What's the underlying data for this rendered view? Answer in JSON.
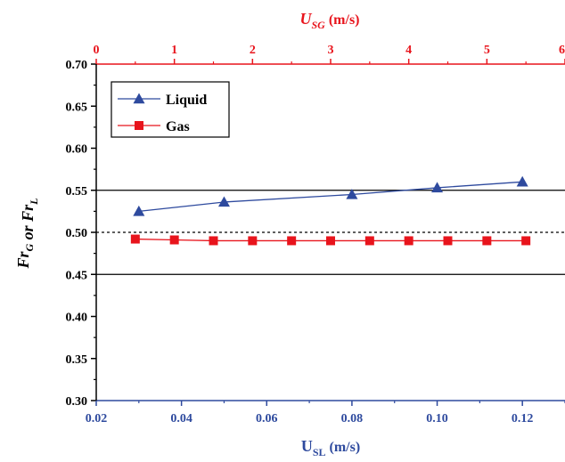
{
  "chart_data": {
    "type": "line",
    "title": "",
    "xlabel": {
      "main": "U",
      "sub": "SL",
      "unit": "(m/s)"
    },
    "x2label": {
      "main": "U",
      "sub": "SG",
      "unit": "(m/s)"
    },
    "ylabel": {
      "parts": [
        {
          "t": "Fr",
          "sub": "G"
        },
        {
          "t": " or "
        },
        {
          "t": "Fr",
          "sub": "L"
        }
      ]
    },
    "xlim": [
      0.02,
      0.13
    ],
    "x2lim": [
      0,
      6
    ],
    "ylim": [
      0.3,
      0.7
    ],
    "xticks": [
      "0.02",
      "0.04",
      "0.06",
      "0.08",
      "0.10",
      "0.12"
    ],
    "x2ticks": [
      "0",
      "1",
      "2",
      "3",
      "4",
      "5",
      "6"
    ],
    "yticks": [
      "0.30",
      "0.35",
      "0.40",
      "0.45",
      "0.50",
      "0.55",
      "0.60",
      "0.65",
      "0.70"
    ],
    "reference_lines": [
      {
        "y": 0.55,
        "style": "solid",
        "color": "#000000"
      },
      {
        "y": 0.5,
        "style": "dashed",
        "color": "#000000"
      },
      {
        "y": 0.45,
        "style": "solid",
        "color": "#000000"
      }
    ],
    "series": [
      {
        "name": "Liquid",
        "axis": "bottom",
        "marker": "triangle",
        "color": "#2e4a9e",
        "x": [
          0.03,
          0.05,
          0.08,
          0.1,
          0.12
        ],
        "y": [
          0.525,
          0.536,
          0.545,
          0.553,
          0.56
        ]
      },
      {
        "name": "Gas",
        "axis": "top",
        "marker": "square",
        "color": "#e8141c",
        "x": [
          0.5,
          1.0,
          1.5,
          2.0,
          2.5,
          3.0,
          3.5,
          4.0,
          4.5,
          5.0,
          5.5
        ],
        "y": [
          0.492,
          0.491,
          0.49,
          0.49,
          0.49,
          0.49,
          0.49,
          0.49,
          0.49,
          0.49,
          0.49
        ]
      }
    ],
    "legend": {
      "placement": "top-left",
      "entries": [
        "Liquid",
        "Gas"
      ]
    },
    "colors": {
      "bottom_axis": "#2e4a9e",
      "top_axis": "#e8141c",
      "left_axis": "#000000"
    }
  }
}
